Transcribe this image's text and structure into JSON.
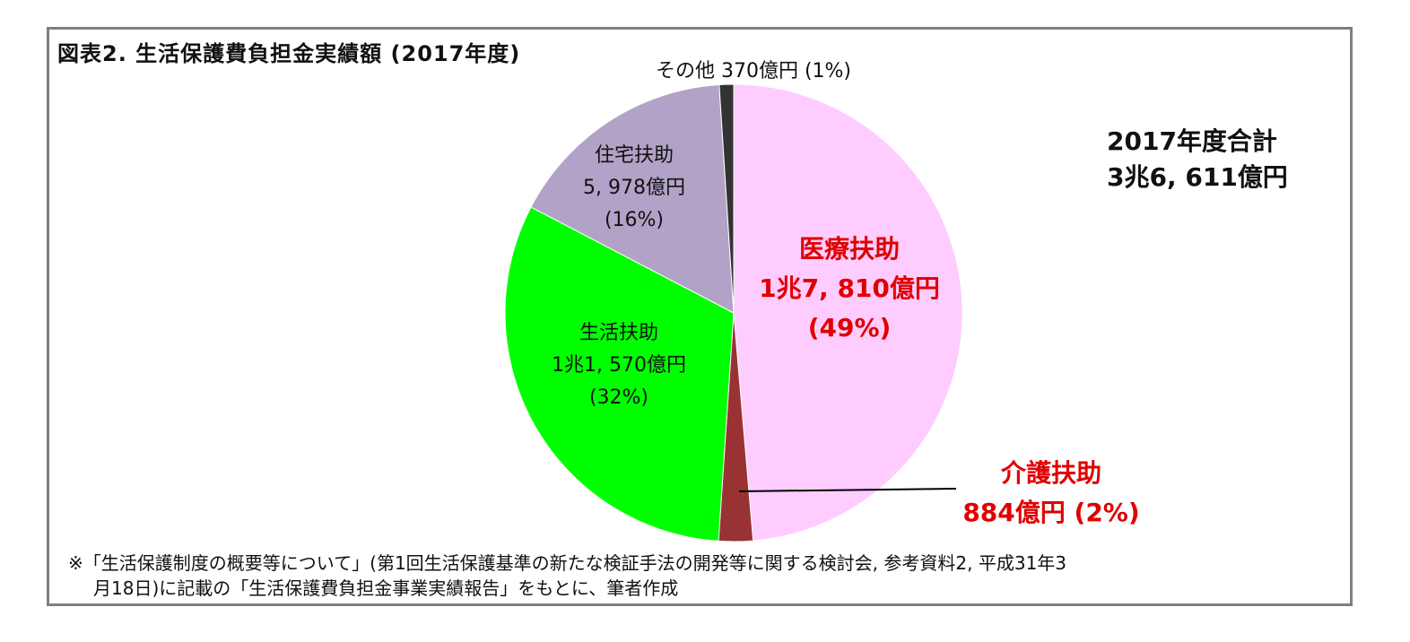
{
  "title": "図表2. 生活保護費負担金実績額 (2017年度)",
  "total": {
    "line1": "2017年度合計",
    "line2": "3兆6, 611億円"
  },
  "note": {
    "line1": "※「生活保護制度の概要等について」(第1回生活保護基準の新たな検証手法の開発等に関する検討会, 参考資料2, 平成31年3",
    "line2": "月18日)に記載の「生活保護費負担金事業実績報告」をもとに、筆者作成"
  },
  "chart_data": {
    "type": "pie",
    "unit": "億円",
    "start_angle_deg": 0,
    "direction": "clockwise",
    "slices": [
      {
        "name": "医療扶助",
        "value": 17810,
        "percent": 49,
        "color": "#ffccff",
        "label_value": "1兆7, 810億円",
        "label_pct": "(49%)",
        "emphasis": true
      },
      {
        "name": "介護扶助",
        "value": 884,
        "percent": 2,
        "color": "#993333",
        "label_value": "884億円 (2%)",
        "emphasis": true
      },
      {
        "name": "生活扶助",
        "value": 11570,
        "percent": 32,
        "color": "#00ff00",
        "label_value": "1兆1, 570億円",
        "label_pct": "(32%)"
      },
      {
        "name": "住宅扶助",
        "value": 5978,
        "percent": 16,
        "color": "#b2a2c7",
        "label_value": "5, 978億円",
        "label_pct": "(16%)"
      },
      {
        "name": "その他",
        "value": 370,
        "percent": 1,
        "color": "#333333",
        "label_value": "その他 370億円 (1%)"
      }
    ]
  }
}
